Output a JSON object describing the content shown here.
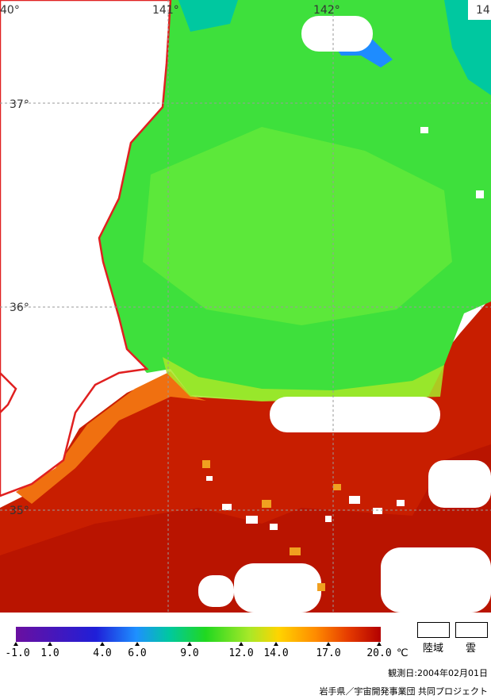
{
  "map": {
    "lon_labels": [
      "40°",
      "141°",
      "142°",
      "14"
    ],
    "lat_labels": [
      "37°",
      "36°",
      "35°"
    ]
  },
  "colorbar": {
    "ticks": [
      "-1.0",
      "1.0",
      "4.0",
      "6.0",
      "9.0",
      "12.0",
      "14.0",
      "17.0",
      "20.0"
    ],
    "unit": "℃",
    "colors": [
      "#6a0fa0",
      "#1f1fd8",
      "#1e90ff",
      "#00c8a0",
      "#20d820",
      "#a8e828",
      "#ffd400",
      "#ff8c00",
      "#e63c00",
      "#b30000"
    ]
  },
  "legend": {
    "land_label": "陸域",
    "cloud_label": "雲"
  },
  "footer": {
    "observation": "観測日:2004年02月01日",
    "credit": "岩手県／宇宙開発事業団 共同プロジェクト"
  }
}
